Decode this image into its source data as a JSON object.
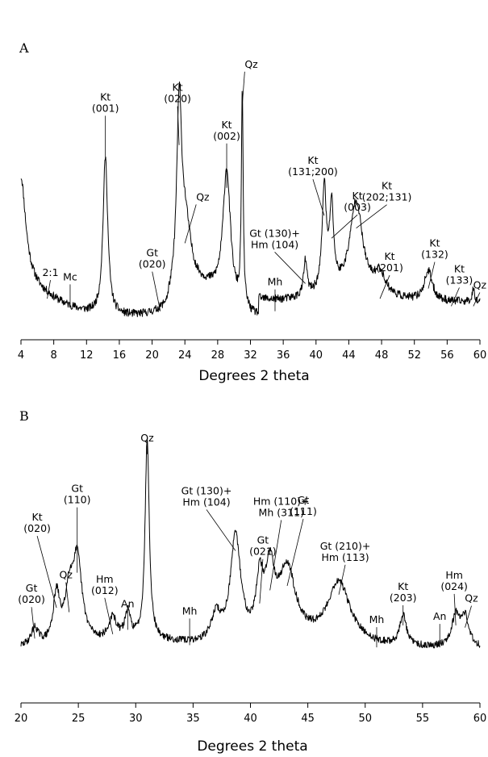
{
  "chart_data": [
    {
      "type": "line",
      "panel": "A",
      "xlabel": "Degrees 2 theta",
      "ylabel": "",
      "xlim": [
        4,
        60
      ],
      "ylim": [
        0,
        100
      ],
      "xticks": [
        4,
        8,
        12,
        16,
        20,
        24,
        28,
        32,
        36,
        40,
        44,
        48,
        52,
        56,
        60
      ],
      "peaks": [
        {
          "x": 4.0,
          "y": 40,
          "w": 0.7
        },
        {
          "x": 14.3,
          "y": 63,
          "w": 0.35
        },
        {
          "x": 23.3,
          "y": 69,
          "w": 0.35
        },
        {
          "x": 24.0,
          "y": 30,
          "w": 0.9
        },
        {
          "x": 29.1,
          "y": 52,
          "w": 0.55
        },
        {
          "x": 31.0,
          "y": 85,
          "w": 0.13
        },
        {
          "x": 38.7,
          "y": 14,
          "w": 0.25
        },
        {
          "x": 41.0,
          "y": 41,
          "w": 0.3
        },
        {
          "x": 41.9,
          "y": 32,
          "w": 0.3
        },
        {
          "x": 44.9,
          "y": 36,
          "w": 0.9
        },
        {
          "x": 47.8,
          "y": 8,
          "w": 0.8
        },
        {
          "x": 53.7,
          "y": 12,
          "w": 0.6
        },
        {
          "x": 59.2,
          "y": 5,
          "w": 0.2
        }
      ],
      "annotations": [
        {
          "text": "Kt\n(001)",
          "x": 14.3,
          "y": 63
        },
        {
          "text": "Kt\n(020)",
          "x": 23.3,
          "y": 69
        },
        {
          "text": "Qz",
          "x": 24.0,
          "y": 30
        },
        {
          "text": "Kt\n(002)",
          "x": 29.1,
          "y": 52
        },
        {
          "text": "Qz",
          "x": 31.0,
          "y": 85
        },
        {
          "text": "Kt\n(131;200)",
          "x": 41.0,
          "y": 41
        },
        {
          "text": "Kt\n(003)",
          "x": 41.9,
          "y": 32
        },
        {
          "text": "Gt (130)+\nHm (104)",
          "x": 38.7,
          "y": 14
        },
        {
          "text": "Kt\n(202;131)",
          "x": 44.9,
          "y": 36
        },
        {
          "text": "Kt\n(201)",
          "x": 47.8,
          "y": 8
        },
        {
          "text": "Kt\n(132)",
          "x": 53.7,
          "y": 12
        },
        {
          "text": "Kt\n(133)",
          "x": 56.5,
          "y": 5
        },
        {
          "text": "Qz",
          "x": 59.2,
          "y": 5
        },
        {
          "text": "2:1",
          "x": 7.2,
          "y": 8
        },
        {
          "text": "Mc",
          "x": 10.0,
          "y": 5
        },
        {
          "text": "Gt\n(020)",
          "x": 21.0,
          "y": 3
        },
        {
          "text": "Mh",
          "x": 35.0,
          "y": 3
        }
      ]
    },
    {
      "type": "line",
      "panel": "B",
      "xlabel": "Degrees 2 theta",
      "ylabel": "",
      "xlim": [
        20,
        60
      ],
      "ylim": [
        0,
        100
      ],
      "xticks": [
        20,
        25,
        30,
        35,
        40,
        45,
        50,
        55,
        60
      ],
      "peaks": [
        {
          "x": 21.2,
          "y": 8,
          "w": 0.4
        },
        {
          "x": 23.1,
          "y": 22,
          "w": 0.35
        },
        {
          "x": 24.2,
          "y": 20,
          "w": 0.4
        },
        {
          "x": 24.9,
          "y": 38,
          "w": 0.5
        },
        {
          "x": 28.0,
          "y": 10,
          "w": 0.4
        },
        {
          "x": 29.3,
          "y": 12,
          "w": 0.3
        },
        {
          "x": 31.0,
          "y": 92,
          "w": 0.22
        },
        {
          "x": 37.0,
          "y": 12,
          "w": 0.5
        },
        {
          "x": 38.7,
          "y": 48,
          "w": 0.55
        },
        {
          "x": 40.8,
          "y": 24,
          "w": 0.35
        },
        {
          "x": 41.7,
          "y": 30,
          "w": 0.5
        },
        {
          "x": 43.2,
          "y": 32,
          "w": 0.9
        },
        {
          "x": 47.7,
          "y": 28,
          "w": 1.2
        },
        {
          "x": 53.3,
          "y": 14,
          "w": 0.35
        },
        {
          "x": 57.9,
          "y": 14,
          "w": 0.45
        },
        {
          "x": 58.7,
          "y": 13,
          "w": 0.4
        }
      ],
      "annotations": [
        {
          "text": "Gt\n(020)",
          "x": 21.2,
          "y": 8
        },
        {
          "text": "Kt\n(020)",
          "x": 23.1,
          "y": 22
        },
        {
          "text": "Qz",
          "x": 24.2,
          "y": 20
        },
        {
          "text": "Gt\n(110)",
          "x": 24.9,
          "y": 38
        },
        {
          "text": "Hm\n(012)",
          "x": 28.0,
          "y": 10
        },
        {
          "text": "An",
          "x": 29.3,
          "y": 12
        },
        {
          "text": "Qz",
          "x": 31.0,
          "y": 92
        },
        {
          "text": "Mh",
          "x": 34.7,
          "y": 5
        },
        {
          "text": "Gt (130)+\nHm (104)",
          "x": 38.7,
          "y": 48
        },
        {
          "text": "Gt\n(021)",
          "x": 40.8,
          "y": 24
        },
        {
          "text": "Hm (110)+\nMh (311)",
          "x": 41.7,
          "y": 30
        },
        {
          "text": "Gt\n(111)",
          "x": 43.2,
          "y": 32
        },
        {
          "text": "Gt (210)+\nHm (113)",
          "x": 47.7,
          "y": 28
        },
        {
          "text": "Mh",
          "x": 51.0,
          "y": 4
        },
        {
          "text": "Kt\n(203)",
          "x": 53.3,
          "y": 14
        },
        {
          "text": "An",
          "x": 56.5,
          "y": 4
        },
        {
          "text": "Hm\n(024)",
          "x": 57.9,
          "y": 14
        },
        {
          "text": "Qz",
          "x": 58.7,
          "y": 13
        }
      ]
    }
  ]
}
